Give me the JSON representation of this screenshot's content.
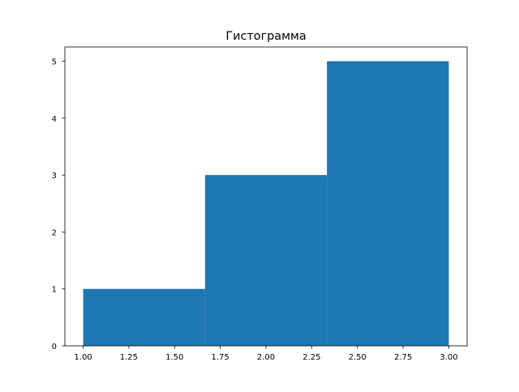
{
  "chart_data": {
    "type": "bar",
    "title": "Гистограмма",
    "xlabel": "",
    "ylabel": "",
    "bin_edges": [
      1.0,
      1.6667,
      2.3333,
      3.0
    ],
    "values": [
      1,
      3,
      5
    ],
    "xlim": [
      0.9,
      3.1
    ],
    "ylim": [
      0,
      5.25
    ],
    "xticks": [
      "1.00",
      "1.25",
      "1.50",
      "1.75",
      "2.00",
      "2.25",
      "2.50",
      "2.75",
      "3.00"
    ],
    "xtick_values": [
      1.0,
      1.25,
      1.5,
      1.75,
      2.0,
      2.25,
      2.5,
      2.75,
      3.0
    ],
    "yticks": [
      "0",
      "1",
      "2",
      "3",
      "4",
      "5"
    ],
    "ytick_values": [
      0,
      1,
      2,
      3,
      4,
      5
    ],
    "grid": false,
    "color": "#1f77b4"
  }
}
